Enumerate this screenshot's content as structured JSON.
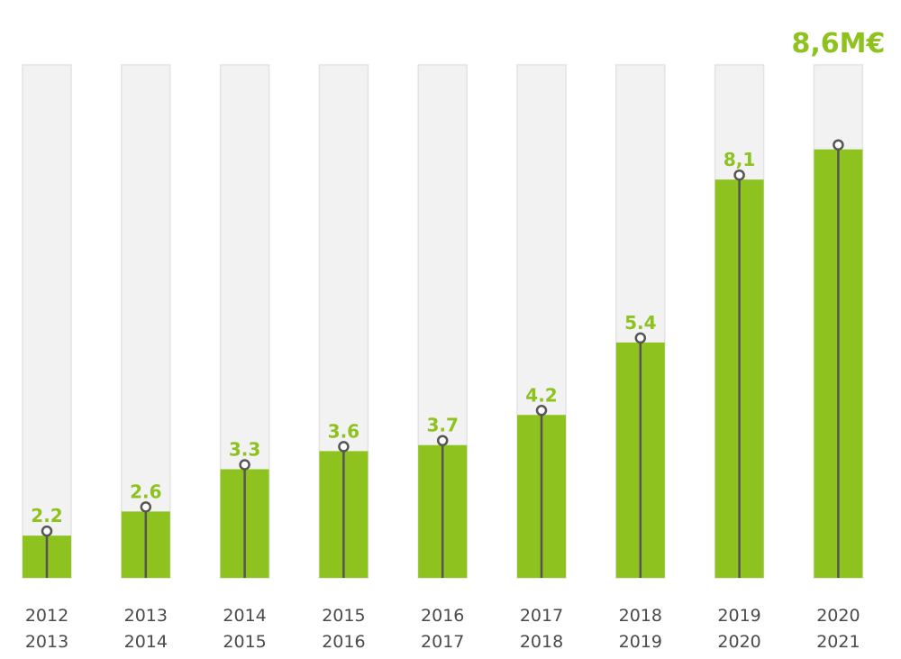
{
  "chart_data": {
    "type": "bar",
    "categories": [
      [
        "2012",
        "2013"
      ],
      [
        "2013",
        "2014"
      ],
      [
        "2014",
        "2015"
      ],
      [
        "2015",
        "2016"
      ],
      [
        "2016",
        "2017"
      ],
      [
        "2017",
        "2018"
      ],
      [
        "2018",
        "2019"
      ],
      [
        "2019",
        "2020"
      ],
      [
        "2020",
        "2021"
      ]
    ],
    "values": [
      2.2,
      2.6,
      3.3,
      3.6,
      3.7,
      4.2,
      5.4,
      8.1,
      8.6
    ],
    "value_labels": [
      "2.2",
      "2.6",
      "3.3",
      "3.6",
      "3.7",
      "4.2",
      "5.4",
      "8,1",
      "8,6M€"
    ],
    "ylim": [
      1.5,
      10
    ],
    "grid": false,
    "legend": "none",
    "colors": {
      "bar_fill": "#8dc21f",
      "bar_background": "#f2f2f2",
      "bar_outline": "#e3e3e3",
      "stem": "#555555",
      "value_text": "#8dc21f",
      "tick_text": "#4a4a4a"
    }
  }
}
